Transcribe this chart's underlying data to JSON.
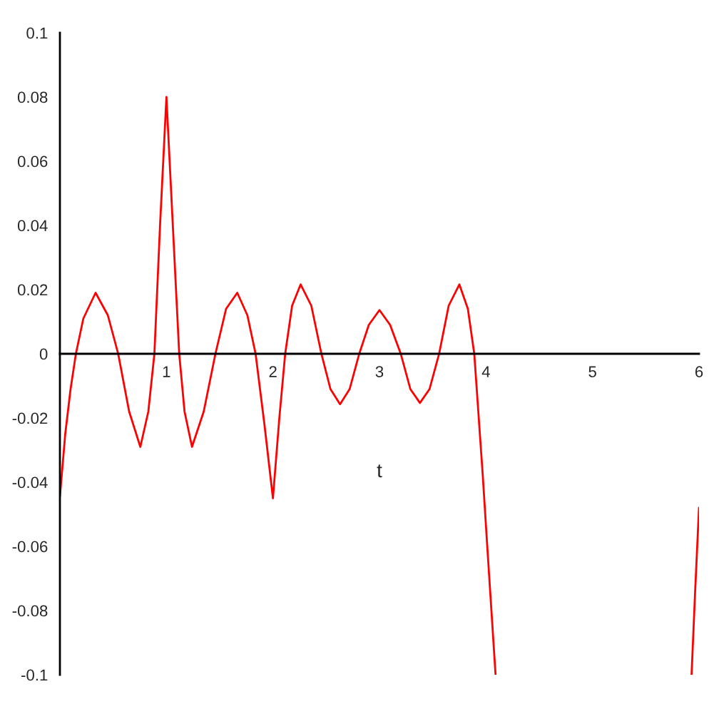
{
  "chart_data": {
    "type": "line",
    "xlabel": "t",
    "x": [
      0,
      0.05,
      0.1,
      0.15,
      0.22,
      0.335,
      0.45,
      0.547,
      0.65,
      0.755,
      0.83,
      0.887,
      0.94,
      1.0,
      1.06,
      1.12,
      1.17,
      1.24,
      1.35,
      1.46,
      1.56,
      1.665,
      1.76,
      1.837,
      1.92,
      2.0,
      2.06,
      2.115,
      2.18,
      2.26,
      2.36,
      2.455,
      2.54,
      2.63,
      2.72,
      2.81,
      2.9,
      3.0,
      3.1,
      3.2,
      3.29,
      3.38,
      3.47,
      3.56,
      3.65,
      3.75,
      3.83,
      3.89,
      3.97,
      4.01,
      4.09,
      5.0,
      5.93,
      5.965,
      6.0
    ],
    "series": [
      {
        "color": "#ff0000",
        "values": [
          -0.0445,
          -0.025,
          -0.011,
          0,
          0.011,
          0.019,
          0.012,
          0,
          -0.018,
          -0.029,
          -0.018,
          0,
          0.04,
          0.08,
          0.04,
          0,
          -0.018,
          -0.029,
          -0.018,
          0,
          0.014,
          0.019,
          0.012,
          0,
          -0.022,
          -0.045,
          -0.02,
          0,
          0.015,
          0.0216,
          0.015,
          0,
          -0.011,
          -0.0157,
          -0.011,
          0,
          0.009,
          0.0136,
          0.009,
          0,
          -0.011,
          -0.0153,
          -0.011,
          0,
          0.015,
          0.0216,
          0.014,
          0,
          -0.038,
          -0.059,
          -0.1,
          null,
          -0.1,
          -0.073,
          -0.048
        ]
      }
    ],
    "xlim": [
      0,
      6
    ],
    "ylim": [
      -0.1,
      0.1
    ],
    "xticks": [
      1,
      2,
      3,
      4,
      5,
      6
    ],
    "yticks": [
      -0.1,
      -0.08,
      -0.06,
      -0.04,
      -0.02,
      0,
      0.02,
      0.04,
      0.06,
      0.08,
      0.1
    ],
    "grid": false,
    "legend": false,
    "marker": "none",
    "line_style": "solid"
  }
}
